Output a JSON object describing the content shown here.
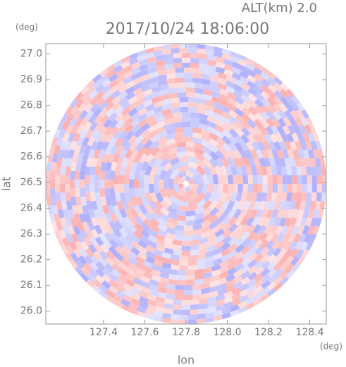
{
  "chart_data": {
    "type": "heatmap",
    "title": "2017/10/24 18:06:00",
    "subtitle": "ALT(km)  2.0",
    "x_label": "lon",
    "y_label": "lat",
    "x_unit": "(deg)",
    "y_unit": "(deg)",
    "xlim": [
      127.12,
      128.48
    ],
    "ylim": [
      25.95,
      27.04
    ],
    "xticks": [
      127.4,
      127.6,
      127.8,
      {
        "value": 128.0,
        "label": "128.0"
      },
      128.2,
      128.4
    ],
    "yticks": [
      {
        "value": 26.0,
        "label": "26.0"
      },
      26.1,
      26.2,
      26.3,
      26.4,
      26.5,
      26.6,
      26.7,
      26.8,
      26.9,
      {
        "value": 27.0,
        "label": "27.0"
      }
    ]
  }
}
